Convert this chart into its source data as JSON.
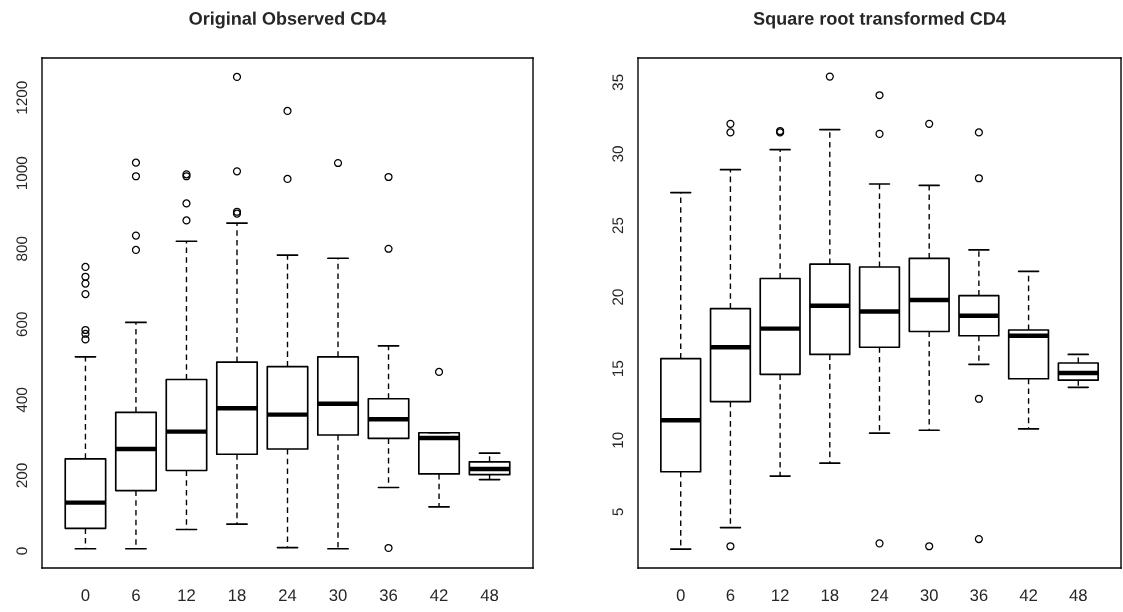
{
  "chart_data": [
    {
      "type": "box",
      "title": "Original Observed CD4",
      "categories": [
        "0",
        "6",
        "12",
        "18",
        "24",
        "30",
        "36",
        "42",
        "48"
      ],
      "ylim": [
        -45,
        1305
      ],
      "yticks": [
        0,
        200,
        400,
        600,
        800,
        1000,
        1200
      ],
      "grid": false,
      "boxes": [
        {
          "low": 6,
          "q1": 60,
          "median": 128,
          "q3": 244,
          "high": 514,
          "outliers": [
            560,
            575,
            585,
            680,
            708,
            726,
            752
          ]
        },
        {
          "low": 6,
          "q1": 160,
          "median": 270,
          "q3": 367,
          "high": 605,
          "outliers": [
            797,
            835,
            992,
            1028
          ]
        },
        {
          "low": 57,
          "q1": 213,
          "median": 316,
          "q3": 454,
          "high": 820,
          "outliers": [
            875,
            920,
            992,
            997
          ]
        },
        {
          "low": 71,
          "q1": 256,
          "median": 378,
          "q3": 500,
          "high": 868,
          "outliers": [
            893,
            898,
            1005,
            1255
          ]
        },
        {
          "low": 9,
          "q1": 270,
          "median": 361,
          "q3": 488,
          "high": 783,
          "outliers": [
            985,
            1165
          ]
        },
        {
          "low": 6,
          "q1": 307,
          "median": 390,
          "q3": 514,
          "high": 775,
          "outliers": [
            1027
          ]
        },
        {
          "low": 168,
          "q1": 298,
          "median": 349,
          "q3": 403,
          "high": 543,
          "outliers": [
            8,
            800,
            990
          ]
        },
        {
          "low": 117,
          "q1": 204,
          "median": 299,
          "q3": 313,
          "high": 313,
          "outliers": [
            474
          ]
        },
        {
          "low": 189,
          "q1": 202,
          "median": 217,
          "q3": 236,
          "high": 259
        }
      ]
    },
    {
      "type": "box",
      "title": "Square root transformed CD4",
      "categories": [
        "0",
        "6",
        "12",
        "18",
        "24",
        "30",
        "36",
        "42",
        "48"
      ],
      "ylim": [
        1.08,
        36.7
      ],
      "yticks": [
        5,
        10,
        15,
        20,
        25,
        30,
        35
      ],
      "grid": false,
      "boxes": [
        {
          "low": 2.4,
          "q1": 7.8,
          "median": 11.4,
          "q3": 15.7,
          "high": 27.3
        },
        {
          "low": 3.9,
          "q1": 12.7,
          "median": 16.5,
          "q3": 19.2,
          "high": 28.9,
          "outliers": [
            2.6,
            31.5,
            32.1
          ]
        },
        {
          "low": 7.5,
          "q1": 14.6,
          "median": 17.8,
          "q3": 21.3,
          "high": 30.3,
          "outliers": [
            31.5,
            31.6
          ]
        },
        {
          "low": 8.4,
          "q1": 16.0,
          "median": 19.4,
          "q3": 22.3,
          "high": 31.7,
          "outliers": [
            35.4
          ]
        },
        {
          "low": 10.5,
          "q1": 16.5,
          "median": 19.0,
          "q3": 22.1,
          "high": 27.9,
          "outliers": [
            2.8,
            31.4,
            34.1
          ]
        },
        {
          "low": 10.7,
          "q1": 17.6,
          "median": 19.8,
          "q3": 22.7,
          "high": 27.8,
          "outliers": [
            2.6,
            32.1
          ]
        },
        {
          "low": 15.3,
          "q1": 17.3,
          "median": 18.7,
          "q3": 20.1,
          "high": 23.3,
          "outliers": [
            3.1,
            12.9,
            28.3,
            31.5
          ]
        },
        {
          "low": 10.8,
          "q1": 14.3,
          "median": 17.3,
          "q3": 17.7,
          "high": 21.8
        },
        {
          "low": 13.7,
          "q1": 14.2,
          "median": 14.7,
          "q3": 15.4,
          "high": 16.0
        }
      ]
    }
  ]
}
